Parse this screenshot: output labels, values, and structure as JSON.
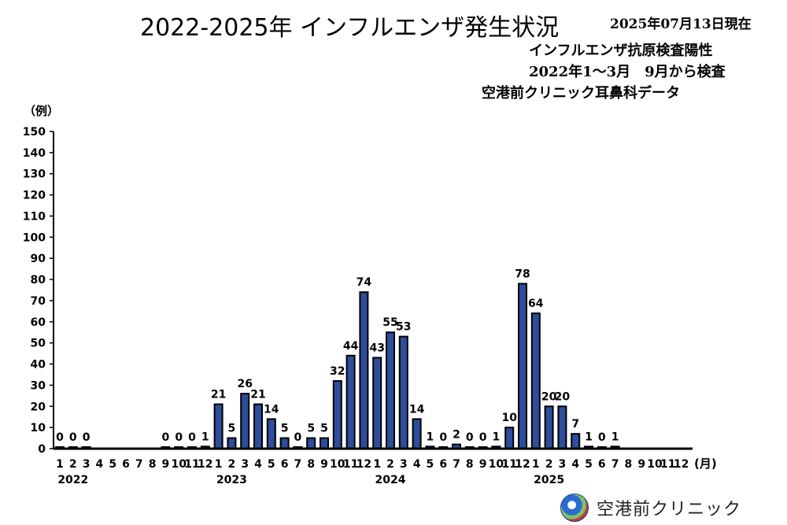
{
  "header": {
    "title": "2022-2025年 インフルエンザ発生状況",
    "as_of": "2025年07月13日現在",
    "subtitle_line1": "インフルエンザ抗原検査陽性",
    "subtitle_line2": "2022年1～3月　9月から検査",
    "subtitle_line3": "空港前クリニック耳鼻科データ"
  },
  "footer": {
    "clinic_name": "空港前クリニック"
  },
  "colors": {
    "bar_fill": "#2e4d9b",
    "bar_stroke": "#000000"
  },
  "chart_data": {
    "type": "bar",
    "ylabel": "（例）",
    "xlabel": "(月)",
    "ylim": [
      0,
      150
    ],
    "yticks": [
      0,
      10,
      20,
      30,
      40,
      50,
      60,
      70,
      80,
      90,
      100,
      110,
      120,
      130,
      140,
      150
    ],
    "grid": false,
    "years": [
      {
        "label": "2022",
        "months": [
          {
            "m": 1,
            "v": 0
          },
          {
            "m": 2,
            "v": 0
          },
          {
            "m": 3,
            "v": 0
          },
          {
            "m": 4,
            "v": null
          },
          {
            "m": 5,
            "v": null
          },
          {
            "m": 6,
            "v": null
          },
          {
            "m": 7,
            "v": null
          },
          {
            "m": 8,
            "v": null
          },
          {
            "m": 9,
            "v": 0
          },
          {
            "m": 10,
            "v": 0
          },
          {
            "m": 11,
            "v": 0
          },
          {
            "m": 12,
            "v": 1
          }
        ]
      },
      {
        "label": "2023",
        "months": [
          {
            "m": 1,
            "v": 21
          },
          {
            "m": 2,
            "v": 5
          },
          {
            "m": 3,
            "v": 26
          },
          {
            "m": 4,
            "v": 21
          },
          {
            "m": 5,
            "v": 14
          },
          {
            "m": 6,
            "v": 5
          },
          {
            "m": 7,
            "v": 0
          },
          {
            "m": 8,
            "v": 5
          },
          {
            "m": 9,
            "v": 5
          },
          {
            "m": 10,
            "v": 32
          },
          {
            "m": 11,
            "v": 44
          },
          {
            "m": 12,
            "v": 74
          }
        ]
      },
      {
        "label": "2024",
        "months": [
          {
            "m": 1,
            "v": 43
          },
          {
            "m": 2,
            "v": 55
          },
          {
            "m": 3,
            "v": 53
          },
          {
            "m": 4,
            "v": 14
          },
          {
            "m": 5,
            "v": 1
          },
          {
            "m": 6,
            "v": 0
          },
          {
            "m": 7,
            "v": 2
          },
          {
            "m": 8,
            "v": 0
          },
          {
            "m": 9,
            "v": 0
          },
          {
            "m": 10,
            "v": 1
          },
          {
            "m": 11,
            "v": 10
          },
          {
            "m": 12,
            "v": 78
          }
        ]
      },
      {
        "label": "2025",
        "months": [
          {
            "m": 1,
            "v": 64
          },
          {
            "m": 2,
            "v": 20
          },
          {
            "m": 3,
            "v": 20
          },
          {
            "m": 4,
            "v": 7
          },
          {
            "m": 5,
            "v": 1
          },
          {
            "m": 6,
            "v": 0
          },
          {
            "m": 7,
            "v": 1
          },
          {
            "m": 8,
            "v": null
          },
          {
            "m": 9,
            "v": null
          },
          {
            "m": 10,
            "v": null
          },
          {
            "m": 11,
            "v": null
          },
          {
            "m": 12,
            "v": null
          }
        ]
      }
    ]
  }
}
